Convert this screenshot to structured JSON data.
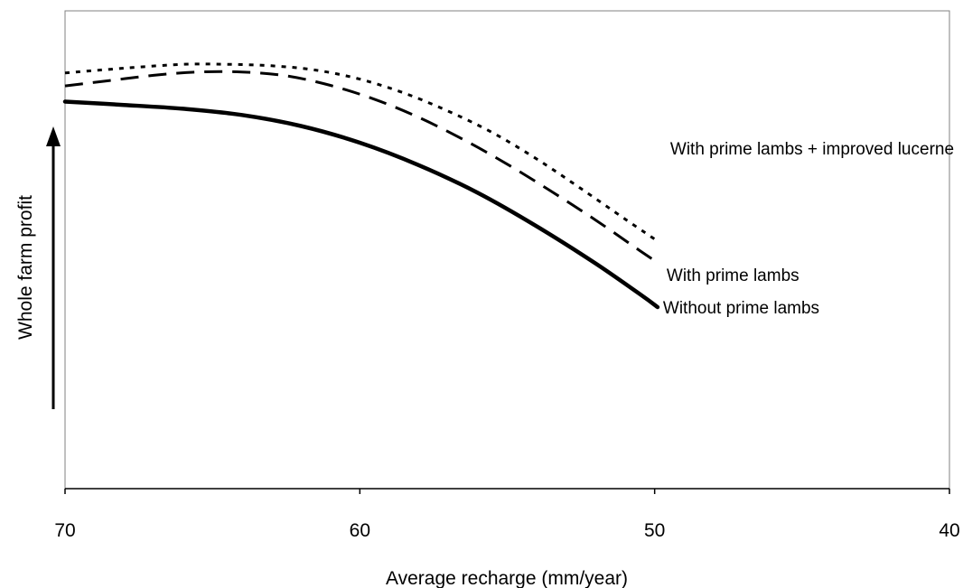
{
  "chart_data": {
    "type": "line",
    "title": "",
    "xlabel": "Average recharge (mm/year)",
    "ylabel": "Whole farm profit",
    "x_reversed": true,
    "xlim": [
      70,
      40
    ],
    "x_ticks": [
      "70",
      "60",
      "50",
      "40"
    ],
    "y_ticks_shown": false,
    "ylim": [
      0,
      100
    ],
    "grid": false,
    "legend": "inline labels at line ends",
    "series": [
      {
        "name": "With prime lambs + improved lucerne",
        "style": "dotted",
        "x": [
          70,
          68,
          66,
          64.5,
          63,
          61.5,
          60,
          58.5,
          57,
          55.5,
          54,
          52.5,
          51,
          49.9
        ],
        "y": [
          87,
          88,
          88.8,
          88.8,
          88.5,
          87.6,
          85.7,
          82.8,
          79,
          74.5,
          69,
          62.8,
          56.4,
          51.8
        ]
      },
      {
        "name": "With prime lambs",
        "style": "dashed",
        "x": [
          70,
          68.5,
          67,
          65.5,
          64,
          62.5,
          61,
          59.5,
          58,
          56.5,
          55,
          53.5,
          52,
          50.5,
          49.9
        ],
        "y": [
          84.3,
          85.4,
          86.5,
          87.2,
          87.2,
          86.4,
          84.4,
          81.5,
          77.7,
          73.1,
          67.9,
          62.2,
          56.2,
          49.8,
          47.3
        ]
      },
      {
        "name": "Without prime lambs",
        "style": "solid",
        "x": [
          70,
          68,
          66,
          64,
          62,
          60,
          58,
          56,
          54,
          52,
          50.5,
          49.9
        ],
        "y": [
          81,
          80.3,
          79.5,
          78.2,
          75.9,
          72.4,
          67.7,
          61.9,
          54.9,
          47.1,
          40.7,
          38
        ]
      }
    ]
  }
}
